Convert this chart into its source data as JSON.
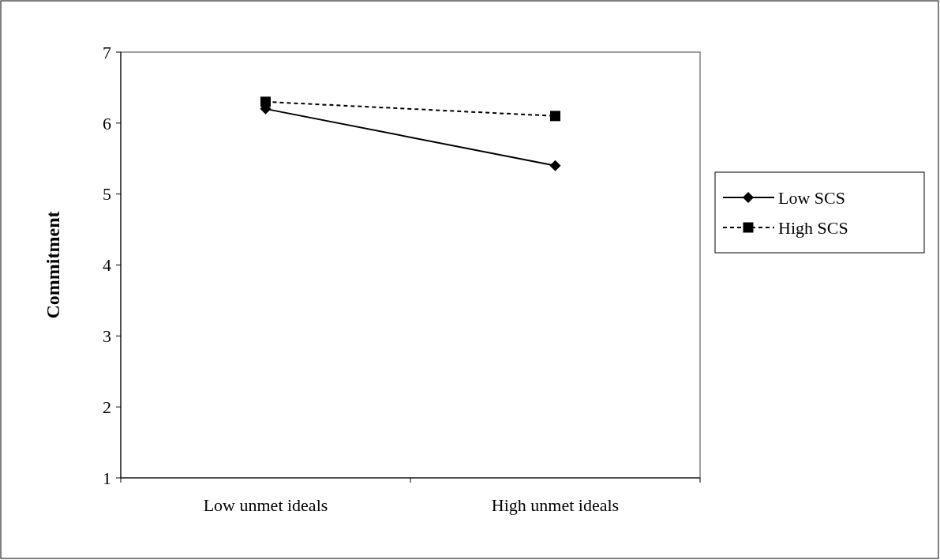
{
  "chart_data": {
    "type": "line",
    "ylabel": "Commitment",
    "categories": [
      "Low unmet ideals",
      "High unmet ideals"
    ],
    "series": [
      {
        "name": "Low SCS",
        "color": "#000000",
        "values": [
          6.2,
          5.4
        ],
        "marker": "diamond",
        "line_style": "solid"
      },
      {
        "name": "High SCS",
        "color": "#000000",
        "values": [
          6.3,
          6.1
        ],
        "marker": "square",
        "line_style": "dashed"
      }
    ],
    "ylim": [
      1,
      7
    ],
    "yticks": [
      1,
      2,
      3,
      4,
      5,
      6,
      7
    ],
    "legend": "right"
  }
}
